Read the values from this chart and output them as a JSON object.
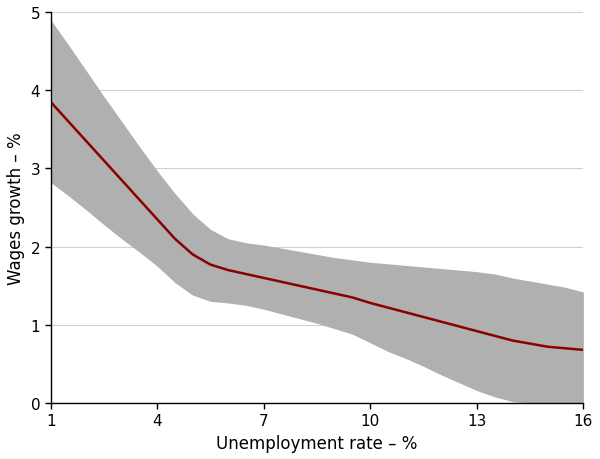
{
  "xlabel": "Unemployment rate – %",
  "ylabel": "Wages growth – %",
  "xlim": [
    1,
    16
  ],
  "ylim": [
    0,
    5
  ],
  "xticks": [
    1,
    4,
    7,
    10,
    13,
    16
  ],
  "yticks": [
    0,
    1,
    2,
    3,
    4,
    5
  ],
  "line_color": "#8B0000",
  "band_color": "#B0B0B0",
  "background_color": "#FFFFFF",
  "line_width": 1.8,
  "x": [
    1,
    1.5,
    2,
    2.5,
    3,
    3.5,
    4,
    4.5,
    5,
    5.5,
    6,
    6.5,
    7,
    7.5,
    8,
    8.5,
    9,
    9.5,
    10,
    10.5,
    11,
    11.5,
    12,
    12.5,
    13,
    13.5,
    14,
    14.5,
    15,
    15.5,
    16
  ],
  "y_mean": [
    3.85,
    3.6,
    3.35,
    3.1,
    2.85,
    2.6,
    2.35,
    2.1,
    1.9,
    1.77,
    1.7,
    1.65,
    1.6,
    1.55,
    1.5,
    1.45,
    1.4,
    1.35,
    1.28,
    1.22,
    1.16,
    1.1,
    1.04,
    0.98,
    0.92,
    0.86,
    0.8,
    0.76,
    0.72,
    0.7,
    0.68
  ],
  "y_upper": [
    4.9,
    4.58,
    4.25,
    3.92,
    3.6,
    3.28,
    2.97,
    2.68,
    2.42,
    2.22,
    2.1,
    2.05,
    2.02,
    1.98,
    1.94,
    1.9,
    1.86,
    1.83,
    1.8,
    1.78,
    1.76,
    1.74,
    1.72,
    1.7,
    1.68,
    1.65,
    1.6,
    1.56,
    1.52,
    1.48,
    1.42
  ],
  "y_lower": [
    2.82,
    2.65,
    2.47,
    2.28,
    2.1,
    1.93,
    1.75,
    1.54,
    1.38,
    1.3,
    1.28,
    1.25,
    1.2,
    1.14,
    1.08,
    1.02,
    0.95,
    0.88,
    0.77,
    0.66,
    0.57,
    0.47,
    0.36,
    0.26,
    0.16,
    0.08,
    0.02,
    0.0,
    0.0,
    0.0,
    0.0
  ]
}
